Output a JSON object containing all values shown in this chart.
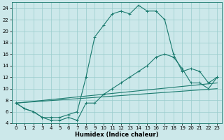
{
  "xlabel": "Humidex (Indice chaleur)",
  "bg_color": "#cce8ea",
  "grid_color": "#99cccc",
  "line_color": "#1a7a6e",
  "xlim": [
    -0.5,
    23.5
  ],
  "ylim": [
    4,
    25
  ],
  "yticks": [
    4,
    6,
    8,
    10,
    12,
    14,
    16,
    18,
    20,
    22,
    24
  ],
  "xticks": [
    0,
    1,
    2,
    3,
    4,
    5,
    6,
    7,
    8,
    9,
    10,
    11,
    12,
    13,
    14,
    15,
    16,
    17,
    18,
    19,
    20,
    21,
    22,
    23
  ],
  "series": [
    {
      "x": [
        0,
        1,
        2,
        3,
        4,
        5,
        6,
        7,
        8,
        9,
        10,
        11,
        12,
        13,
        14,
        15,
        16,
        17,
        18,
        19,
        20,
        21,
        22,
        23
      ],
      "y": [
        7.5,
        6.5,
        6,
        5,
        5,
        5,
        5.5,
        6,
        12,
        19,
        21,
        23,
        23.5,
        23,
        24.5,
        23.5,
        23.5,
        22,
        16,
        13,
        13.5,
        13,
        11,
        12
      ],
      "marker": true
    },
    {
      "x": [
        0,
        1,
        2,
        3,
        4,
        5,
        6,
        7,
        8,
        9,
        10,
        11,
        12,
        13,
        14,
        15,
        16,
        17,
        18,
        19,
        20,
        21,
        22,
        23
      ],
      "y": [
        7.5,
        6.5,
        6,
        5,
        4.5,
        4.5,
        5,
        4.5,
        7.5,
        7.5,
        9,
        10,
        11,
        12,
        13,
        14,
        15.5,
        16,
        15.5,
        13.5,
        11,
        11,
        10,
        12
      ],
      "marker": true
    },
    {
      "x": [
        0,
        23
      ],
      "y": [
        7.5,
        11
      ],
      "marker": false
    },
    {
      "x": [
        0,
        23
      ],
      "y": [
        7.5,
        10
      ],
      "marker": false
    }
  ]
}
